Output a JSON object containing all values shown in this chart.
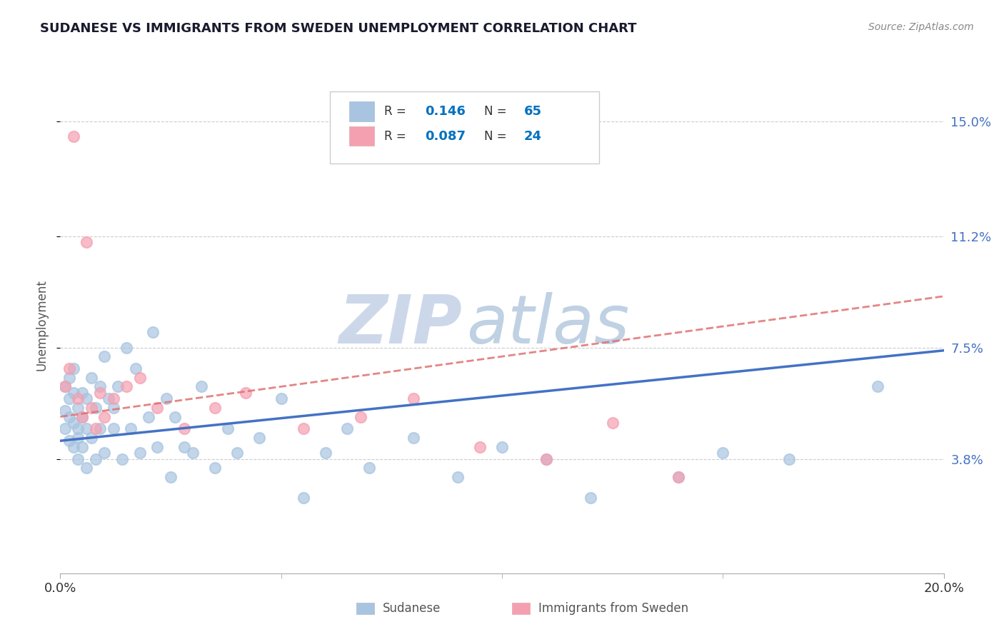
{
  "title": "SUDANESE VS IMMIGRANTS FROM SWEDEN UNEMPLOYMENT CORRELATION CHART",
  "source": "Source: ZipAtlas.com",
  "ylabel": "Unemployment",
  "xmin": 0.0,
  "xmax": 0.2,
  "ymin": 0.0,
  "ymax": 0.165,
  "yticks": [
    0.038,
    0.075,
    0.112,
    0.15
  ],
  "ytick_labels": [
    "3.8%",
    "7.5%",
    "11.2%",
    "15.0%"
  ],
  "xticks": [
    0.0,
    0.2
  ],
  "xtick_labels": [
    "0.0%",
    "20.0%"
  ],
  "grid_color": "#cccccc",
  "bg_color": "#ffffff",
  "sudanese_color": "#a8c4e0",
  "sweden_color": "#f4a0b0",
  "sudanese_line_color": "#4472c4",
  "sweden_line_color": "#e07070",
  "R_sudanese": 0.146,
  "N_sudanese": 65,
  "R_sweden": 0.087,
  "N_sweden": 24,
  "legend_R_color": "#0070c0",
  "legend_N_color": "#0070c0",
  "watermark_zip_color": "#ccd8ea",
  "watermark_atlas_color": "#b8cce0",
  "sudanese_x": [
    0.001,
    0.001,
    0.001,
    0.002,
    0.002,
    0.002,
    0.002,
    0.003,
    0.003,
    0.003,
    0.003,
    0.004,
    0.004,
    0.004,
    0.004,
    0.005,
    0.005,
    0.005,
    0.006,
    0.006,
    0.006,
    0.007,
    0.007,
    0.008,
    0.008,
    0.009,
    0.009,
    0.01,
    0.01,
    0.011,
    0.012,
    0.012,
    0.013,
    0.014,
    0.015,
    0.016,
    0.017,
    0.018,
    0.02,
    0.021,
    0.022,
    0.024,
    0.025,
    0.026,
    0.028,
    0.03,
    0.032,
    0.035,
    0.038,
    0.04,
    0.045,
    0.05,
    0.055,
    0.06,
    0.065,
    0.07,
    0.08,
    0.09,
    0.1,
    0.11,
    0.12,
    0.14,
    0.15,
    0.165,
    0.185
  ],
  "sudanese_y": [
    0.054,
    0.048,
    0.062,
    0.052,
    0.044,
    0.058,
    0.065,
    0.05,
    0.042,
    0.06,
    0.068,
    0.045,
    0.055,
    0.048,
    0.038,
    0.052,
    0.06,
    0.042,
    0.058,
    0.048,
    0.035,
    0.065,
    0.045,
    0.055,
    0.038,
    0.062,
    0.048,
    0.072,
    0.04,
    0.058,
    0.048,
    0.055,
    0.062,
    0.038,
    0.075,
    0.048,
    0.068,
    0.04,
    0.052,
    0.08,
    0.042,
    0.058,
    0.032,
    0.052,
    0.042,
    0.04,
    0.062,
    0.035,
    0.048,
    0.04,
    0.045,
    0.058,
    0.025,
    0.04,
    0.048,
    0.035,
    0.045,
    0.032,
    0.042,
    0.038,
    0.025,
    0.032,
    0.04,
    0.038,
    0.062
  ],
  "sweden_x": [
    0.001,
    0.002,
    0.003,
    0.004,
    0.005,
    0.006,
    0.007,
    0.008,
    0.009,
    0.01,
    0.012,
    0.015,
    0.018,
    0.022,
    0.028,
    0.035,
    0.042,
    0.055,
    0.068,
    0.08,
    0.095,
    0.11,
    0.125,
    0.14
  ],
  "sweden_y": [
    0.062,
    0.068,
    0.145,
    0.058,
    0.052,
    0.11,
    0.055,
    0.048,
    0.06,
    0.052,
    0.058,
    0.062,
    0.065,
    0.055,
    0.048,
    0.055,
    0.06,
    0.048,
    0.052,
    0.058,
    0.042,
    0.038,
    0.05,
    0.032
  ],
  "sudanese_trendline_x": [
    0.0,
    0.2
  ],
  "sudanese_trendline_y": [
    0.044,
    0.074
  ],
  "sweden_trendline_x": [
    0.0,
    0.2
  ],
  "sweden_trendline_y": [
    0.052,
    0.092
  ]
}
